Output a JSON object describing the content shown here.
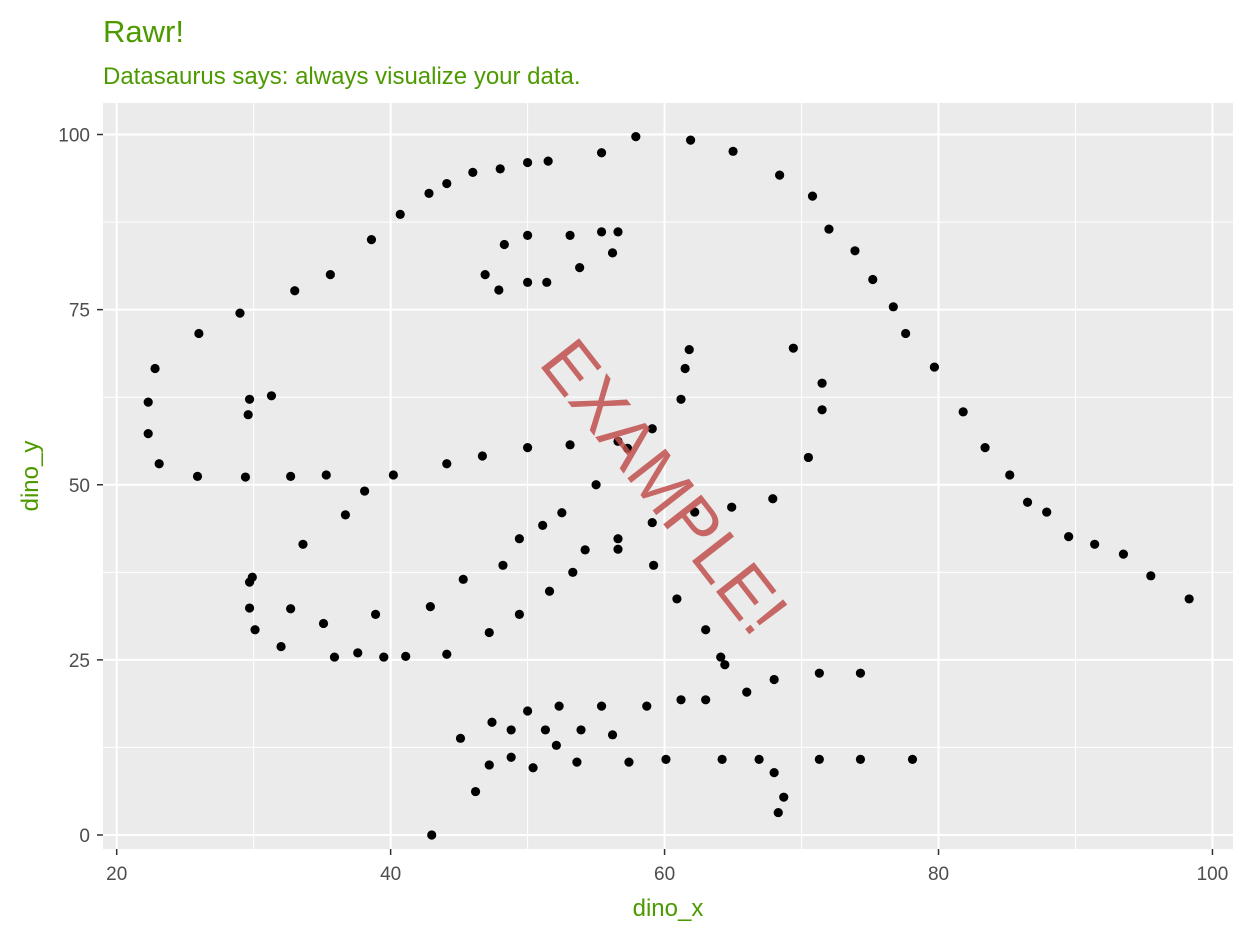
{
  "chart_data": {
    "type": "scatter",
    "title": "Rawr!",
    "subtitle": "Datasaurus says: always visualize your data.",
    "xlabel": "dino_x",
    "ylabel": "dino_y",
    "xlim": [
      19,
      101.5
    ],
    "ylim": [
      -2,
      104.5
    ],
    "x_ticks": [
      20,
      40,
      60,
      80,
      100
    ],
    "y_ticks": [
      0,
      25,
      50,
      75,
      100
    ],
    "x_tick_labels": [
      "20",
      "40",
      "60",
      "80",
      "100"
    ],
    "y_tick_labels": [
      "0",
      "25",
      "50",
      "75",
      "100"
    ],
    "grid": true,
    "watermark": "EXAMPLE!",
    "colors": {
      "panel": "#ebebeb",
      "grid": "#ffffff",
      "points": "#000000",
      "title": "#4d9a00",
      "ticks": "#4d4d4d",
      "watermark": "#c0504d"
    },
    "points": [
      [
        22.3,
        57.3
      ],
      [
        22.3,
        61.8
      ],
      [
        22.8,
        66.6
      ],
      [
        23.1,
        53.0
      ],
      [
        25.9,
        51.2
      ],
      [
        26.0,
        71.6
      ],
      [
        29.0,
        74.5
      ],
      [
        33.0,
        77.7
      ],
      [
        35.6,
        80.0
      ],
      [
        38.6,
        85.0
      ],
      [
        40.7,
        88.6
      ],
      [
        42.8,
        91.6
      ],
      [
        44.1,
        93.0
      ],
      [
        46.0,
        94.6
      ],
      [
        48.0,
        95.1
      ],
      [
        50.0,
        96.0
      ],
      [
        51.5,
        96.2
      ],
      [
        55.4,
        97.4
      ],
      [
        57.9,
        99.7
      ],
      [
        61.9,
        99.2
      ],
      [
        65.0,
        97.6
      ],
      [
        68.4,
        94.2
      ],
      [
        70.8,
        91.2
      ],
      [
        72.0,
        86.5
      ],
      [
        73.9,
        83.4
      ],
      [
        75.2,
        79.3
      ],
      [
        76.7,
        75.4
      ],
      [
        77.6,
        71.6
      ],
      [
        79.7,
        66.8
      ],
      [
        81.8,
        60.4
      ],
      [
        83.4,
        55.3
      ],
      [
        85.2,
        51.4
      ],
      [
        86.5,
        47.5
      ],
      [
        87.9,
        46.1
      ],
      [
        89.5,
        42.6
      ],
      [
        91.4,
        41.5
      ],
      [
        93.5,
        40.1
      ],
      [
        95.5,
        37.0
      ],
      [
        98.3,
        33.7
      ],
      [
        29.4,
        51.1
      ],
      [
        29.6,
        60.0
      ],
      [
        29.7,
        62.2
      ],
      [
        31.3,
        62.7
      ],
      [
        32.7,
        51.2
      ],
      [
        35.3,
        51.4
      ],
      [
        38.1,
        49.1
      ],
      [
        40.2,
        51.4
      ],
      [
        44.1,
        53.0
      ],
      [
        46.7,
        54.1
      ],
      [
        50.0,
        55.3
      ],
      [
        53.1,
        55.7
      ],
      [
        56.6,
        56.2
      ],
      [
        59.1,
        58.0
      ],
      [
        61.2,
        62.2
      ],
      [
        61.5,
        66.6
      ],
      [
        61.8,
        69.3
      ],
      [
        69.4,
        69.5
      ],
      [
        71.5,
        64.5
      ],
      [
        71.5,
        60.7
      ],
      [
        70.5,
        53.9
      ],
      [
        67.9,
        48.0
      ],
      [
        64.9,
        46.8
      ],
      [
        62.2,
        46.1
      ],
      [
        59.1,
        44.6
      ],
      [
        56.6,
        42.3
      ],
      [
        54.2,
        40.7
      ],
      [
        56.6,
        40.8
      ],
      [
        57.3,
        55.2
      ],
      [
        53.3,
        37.5
      ],
      [
        51.6,
        34.8
      ],
      [
        48.2,
        38.5
      ],
      [
        49.4,
        42.3
      ],
      [
        51.1,
        44.2
      ],
      [
        52.5,
        46.0
      ],
      [
        55.0,
        50.0
      ],
      [
        45.3,
        36.5
      ],
      [
        42.9,
        32.6
      ],
      [
        38.9,
        31.5
      ],
      [
        35.1,
        30.2
      ],
      [
        32.7,
        32.3
      ],
      [
        30.1,
        29.3
      ],
      [
        29.7,
        32.4
      ],
      [
        29.7,
        36.1
      ],
      [
        29.9,
        36.8
      ],
      [
        33.6,
        41.5
      ],
      [
        36.7,
        45.7
      ],
      [
        32.0,
        26.9
      ],
      [
        35.9,
        25.4
      ],
      [
        37.6,
        26.0
      ],
      [
        39.5,
        25.4
      ],
      [
        41.1,
        25.5
      ],
      [
        44.1,
        25.8
      ],
      [
        47.2,
        28.9
      ],
      [
        49.4,
        31.5
      ],
      [
        60.9,
        33.7
      ],
      [
        59.2,
        38.5
      ],
      [
        63.0,
        29.3
      ],
      [
        64.1,
        25.4
      ],
      [
        64.4,
        24.3
      ],
      [
        66.0,
        20.4
      ],
      [
        68.0,
        22.2
      ],
      [
        71.3,
        23.1
      ],
      [
        74.3,
        23.1
      ],
      [
        61.2,
        19.3
      ],
      [
        63.0,
        19.3
      ],
      [
        58.7,
        18.4
      ],
      [
        55.4,
        18.4
      ],
      [
        52.3,
        18.4
      ],
      [
        50.0,
        17.7
      ],
      [
        47.4,
        16.1
      ],
      [
        48.8,
        15.0
      ],
      [
        51.3,
        15.0
      ],
      [
        53.9,
        15.0
      ],
      [
        56.2,
        14.3
      ],
      [
        45.1,
        13.8
      ],
      [
        52.1,
        12.8
      ],
      [
        48.8,
        11.1
      ],
      [
        47.2,
        10.0
      ],
      [
        50.4,
        9.6
      ],
      [
        53.6,
        10.4
      ],
      [
        57.4,
        10.4
      ],
      [
        60.1,
        10.8
      ],
      [
        64.2,
        10.8
      ],
      [
        66.9,
        10.8
      ],
      [
        71.3,
        10.8
      ],
      [
        74.3,
        10.8
      ],
      [
        78.1,
        10.8
      ],
      [
        68.0,
        8.9
      ],
      [
        68.7,
        5.4
      ],
      [
        68.3,
        3.2
      ],
      [
        46.2,
        6.2
      ],
      [
        46.9,
        80.0
      ],
      [
        47.9,
        77.8
      ],
      [
        48.3,
        84.3
      ],
      [
        50.0,
        78.9
      ],
      [
        50.0,
        85.6
      ],
      [
        51.4,
        78.9
      ],
      [
        53.1,
        85.6
      ],
      [
        53.8,
        81.0
      ],
      [
        55.4,
        86.1
      ],
      [
        56.2,
        83.1
      ],
      [
        56.6,
        86.1
      ],
      [
        43.0,
        0.0
      ]
    ]
  }
}
